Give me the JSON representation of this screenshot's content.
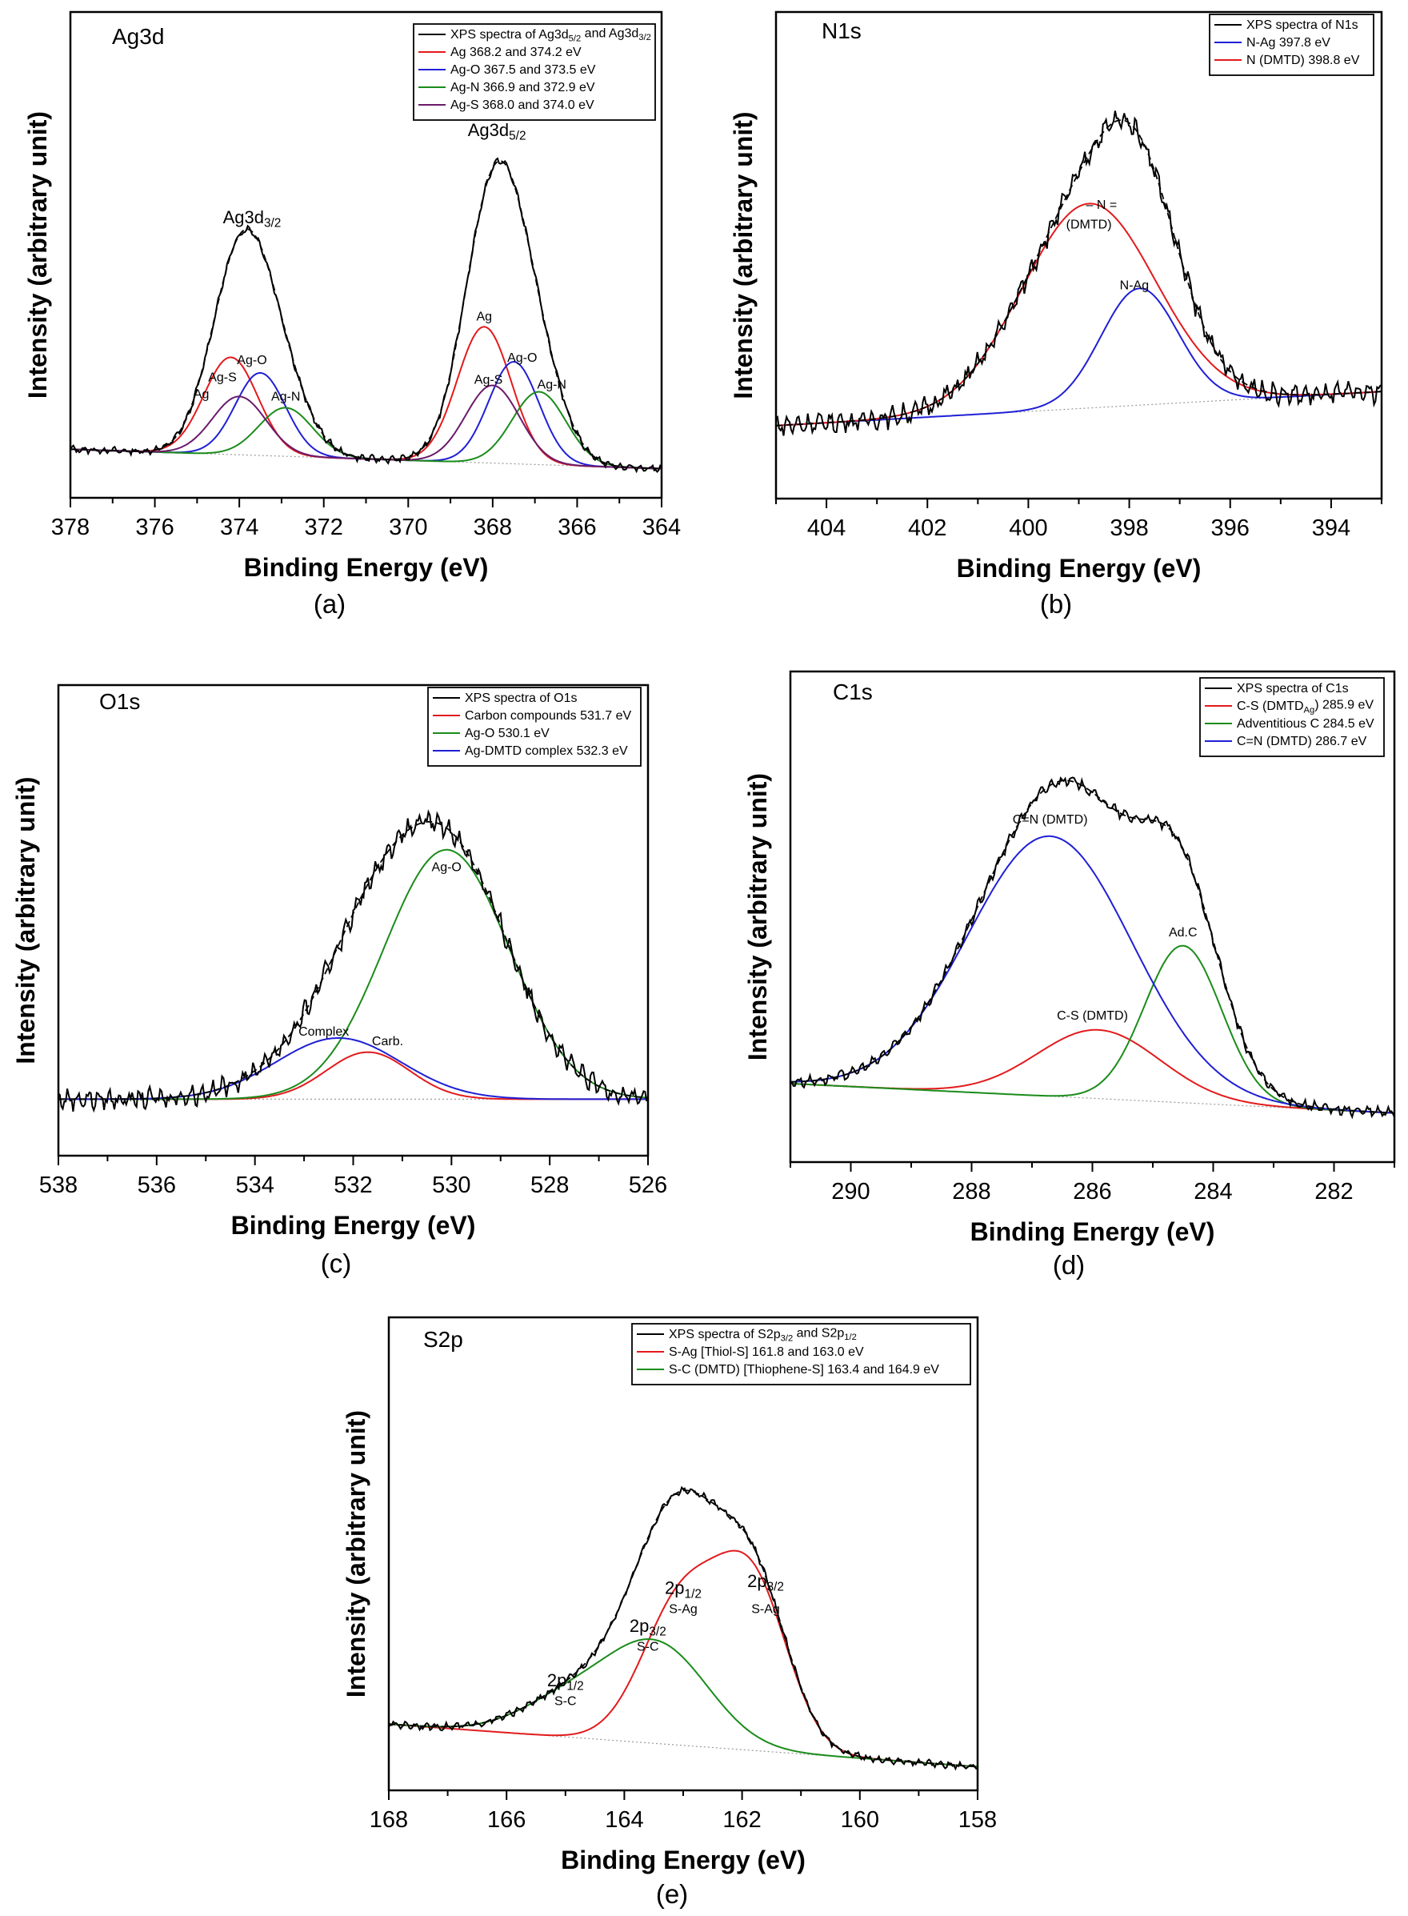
{
  "chart_data": [
    {
      "type": "line",
      "panel_caption": "(a)",
      "title": "Ag3d",
      "xlabel": "Binding Energy (eV)",
      "ylabel": "Intensity (arbitrary unit)",
      "xlim": [
        378,
        364
      ],
      "ylim": [
        0,
        1
      ],
      "xticks": [
        378,
        376,
        374,
        372,
        370,
        368,
        366,
        364
      ],
      "minor_step": 1,
      "grid": false,
      "legend_placement": "top-right",
      "baseline": [
        0.1,
        0.06
      ],
      "noise": 0.004,
      "legend": [
        {
          "text": "XPS spectra of Ag3d_{5/2} and Ag3d_{3/2}",
          "color": "#000000"
        },
        {
          "text": "Ag     368.2 and 374.2 eV",
          "color": "#e31a1c"
        },
        {
          "text": "Ag-O  367.5 and 373.5 eV",
          "color": "#1f1fd6"
        },
        {
          "text": "Ag-N  366.9 and 372.9 eV",
          "color": "#1a8c1a"
        },
        {
          "text": "Ag-S  368.0 and 374.0 eV",
          "color": "#6b1a6b"
        }
      ],
      "components": [
        {
          "name": "Ag",
          "color": "#e31a1c",
          "peaks": [
            {
              "center": 368.2,
              "height": 0.28,
              "fwhm": 1.5
            },
            {
              "center": 374.2,
              "height": 0.2,
              "fwhm": 1.5
            }
          ]
        },
        {
          "name": "Ag-O",
          "color": "#1f1fd6",
          "peaks": [
            {
              "center": 367.5,
              "height": 0.21,
              "fwhm": 1.4
            },
            {
              "center": 373.5,
              "height": 0.17,
              "fwhm": 1.4
            }
          ]
        },
        {
          "name": "Ag-N",
          "color": "#1a8c1a",
          "peaks": [
            {
              "center": 366.9,
              "height": 0.15,
              "fwhm": 1.5
            },
            {
              "center": 372.9,
              "height": 0.1,
              "fwhm": 1.5
            }
          ]
        },
        {
          "name": "Ag-S",
          "color": "#6b1a6b",
          "peaks": [
            {
              "center": 368.0,
              "height": 0.16,
              "fwhm": 1.5
            },
            {
              "center": 374.0,
              "height": 0.12,
              "fwhm": 1.5
            }
          ]
        }
      ],
      "annotations": [
        {
          "text": "Ag3d_{3/2}",
          "x": 373.7,
          "y": 0.565,
          "size": "large"
        },
        {
          "text": "Ag3d_{5/2}",
          "x": 367.9,
          "y": 0.745,
          "size": "large"
        },
        {
          "text": "Ag",
          "x": 374.9,
          "y": 0.205
        },
        {
          "text": "Ag-S",
          "x": 374.4,
          "y": 0.24
        },
        {
          "text": "Ag-O",
          "x": 373.7,
          "y": 0.275
        },
        {
          "text": "Ag-N",
          "x": 372.9,
          "y": 0.2
        },
        {
          "text": "Ag",
          "x": 368.2,
          "y": 0.365
        },
        {
          "text": "Ag-O",
          "x": 367.3,
          "y": 0.28
        },
        {
          "text": "Ag-S",
          "x": 368.1,
          "y": 0.235
        },
        {
          "text": "Ag-N",
          "x": 366.6,
          "y": 0.225
        }
      ]
    },
    {
      "type": "line",
      "panel_caption": "(b)",
      "title": "N1s",
      "xlabel": "Binding Energy (eV)",
      "ylabel": "Intensity (arbitrary unit)",
      "xlim": [
        405,
        393
      ],
      "ylim": [
        0,
        1
      ],
      "xticks": [
        404,
        402,
        400,
        398,
        396,
        394
      ],
      "minor_step": 1,
      "grid": false,
      "legend_placement": "top-right",
      "baseline": [
        0.15,
        0.22
      ],
      "noise": 0.012,
      "legend": [
        {
          "text": "XPS spectra of N1s",
          "color": "#000000"
        },
        {
          "text": "N-Ag  397.8 eV",
          "color": "#1f1fd6"
        },
        {
          "text": "N (DMTD)  398.8 eV",
          "color": "#e31a1c"
        }
      ],
      "components": [
        {
          "name": "N-Ag",
          "color": "#1f1fd6",
          "peaks": [
            {
              "center": 397.8,
              "height": 0.24,
              "fwhm": 1.8
            }
          ]
        },
        {
          "name": "N (DMTD)",
          "color": "#e31a1c",
          "peaks": [
            {
              "center": 398.8,
              "height": 0.42,
              "fwhm": 3.1
            }
          ]
        }
      ],
      "annotations": [
        {
          "text": "– N =",
          "x": 398.55,
          "y": 0.595
        },
        {
          "text": "(DMTD)",
          "x": 398.8,
          "y": 0.555
        },
        {
          "text": "N-Ag",
          "x": 397.9,
          "y": 0.43
        }
      ]
    },
    {
      "type": "line",
      "panel_caption": "(c)",
      "title": "O1s",
      "xlabel": "Binding Energy (eV)",
      "ylabel": "Intensity (arbitrary unit)",
      "xlim": [
        538,
        526
      ],
      "ylim": [
        0,
        1
      ],
      "xticks": [
        538,
        536,
        534,
        532,
        530,
        528,
        526
      ],
      "minor_step": 1,
      "grid": false,
      "legend_placement": "top-right",
      "baseline": [
        0.12,
        0.12
      ],
      "noise": 0.012,
      "legend": [
        {
          "text": "XPS spectra of O1s",
          "color": "#000000"
        },
        {
          "text": "Carbon compounds 531.7 eV",
          "color": "#e31a1c"
        },
        {
          "text": "Ag-O 530.1 eV",
          "color": "#1a8c1a"
        },
        {
          "text": "Ag-DMTD complex 532.3 eV",
          "color": "#1f1fd6"
        }
      ],
      "components": [
        {
          "name": "Carbon compounds",
          "color": "#e31a1c",
          "peaks": [
            {
              "center": 531.7,
              "height": 0.1,
              "fwhm": 2.0
            }
          ]
        },
        {
          "name": "Ag-O",
          "color": "#1a8c1a",
          "peaks": [
            {
              "center": 530.1,
              "height": 0.53,
              "fwhm": 3.0
            }
          ]
        },
        {
          "name": "Ag-DMTD complex",
          "color": "#1f1fd6",
          "peaks": [
            {
              "center": 532.3,
              "height": 0.13,
              "fwhm": 3.0
            }
          ]
        }
      ],
      "annotations": [
        {
          "text": "Ag-O",
          "x": 530.1,
          "y": 0.605
        },
        {
          "text": "Complex",
          "x": 532.6,
          "y": 0.255
        },
        {
          "text": "Carb.",
          "x": 531.3,
          "y": 0.235
        }
      ]
    },
    {
      "type": "line",
      "panel_caption": "(d)",
      "title": "C1s",
      "xlabel": "Binding Energy (eV)",
      "ylabel": "Intensity (arbitrary unit)",
      "xlim": [
        291,
        281
      ],
      "ylim": [
        0,
        1
      ],
      "xticks": [
        290,
        288,
        286,
        284,
        282
      ],
      "minor_step": 1,
      "grid": false,
      "legend_placement": "top-right",
      "baseline": [
        0.16,
        0.1
      ],
      "noise": 0.006,
      "legend": [
        {
          "text": "XPS spectra of C1s",
          "color": "#000000"
        },
        {
          "text": "C-S (DMTD_{Ag}) 285.9 eV",
          "color": "#e31a1c"
        },
        {
          "text": "Adventitious C 284.5 eV",
          "color": "#1a8c1a"
        },
        {
          "text": "C=N (DMTD) 286.7 eV",
          "color": "#1f1fd6"
        }
      ],
      "components": [
        {
          "name": "C-S (DMTD)",
          "color": "#e31a1c",
          "peaks": [
            {
              "center": 285.9,
              "height": 0.14,
              "fwhm": 2.4
            }
          ]
        },
        {
          "name": "Adventitious C",
          "color": "#1a8c1a",
          "peaks": [
            {
              "center": 284.5,
              "height": 0.32,
              "fwhm": 1.5
            }
          ]
        },
        {
          "name": "C=N (DMTD)",
          "color": "#1f1fd6",
          "peaks": [
            {
              "center": 286.7,
              "height": 0.53,
              "fwhm": 3.2
            }
          ]
        }
      ],
      "annotations": [
        {
          "text": "C=N (DMTD)",
          "x": 286.7,
          "y": 0.69
        },
        {
          "text": "Ad.C",
          "x": 284.5,
          "y": 0.46
        },
        {
          "text": "C-S (DMTD)",
          "x": 286.0,
          "y": 0.29
        }
      ]
    },
    {
      "type": "line",
      "panel_caption": "(e)",
      "title": "S2p",
      "xlabel": "Binding Energy (eV)",
      "ylabel": "Intensity (arbitrary unit)",
      "xlim": [
        168,
        158
      ],
      "ylim": [
        0,
        1
      ],
      "xticks": [
        168,
        166,
        164,
        162,
        160,
        158
      ],
      "minor_step": 1,
      "grid": false,
      "legend_placement": "top-right",
      "baseline": [
        0.14,
        0.05
      ],
      "noise": 0.004,
      "legend": [
        {
          "text": "XPS spectra of S2p_{3/2} and S2p_{1/2}",
          "color": "#000000"
        },
        {
          "text": "S-Ag [Thiol-S] 161.8 and 163.0 eV",
          "color": "#e31a1c"
        },
        {
          "text": "S-C (DMTD) [Thiophene-S] 163.4 and 164.9 eV",
          "color": "#1a8c1a"
        }
      ],
      "components": [
        {
          "name": "S-Ag [Thiol-S]",
          "color": "#e31a1c",
          "peaks": [
            {
              "center": 161.8,
              "height": 0.33,
              "fwhm": 1.4
            },
            {
              "center": 163.0,
              "height": 0.31,
              "fwhm": 1.6
            }
          ]
        },
        {
          "name": "S-C (DMTD) [Thiophene-S]",
          "color": "#1a8c1a",
          "peaks": [
            {
              "center": 163.4,
              "height": 0.2,
              "fwhm": 2.0
            },
            {
              "center": 164.9,
              "height": 0.08,
              "fwhm": 2.0
            }
          ]
        }
      ],
      "annotations": [
        {
          "text": "2p_{3/2}",
          "x": 161.6,
          "y": 0.43,
          "size": "large"
        },
        {
          "text": "S-Ag",
          "x": 161.6,
          "y": 0.375
        },
        {
          "text": "2p_{1/2}",
          "x": 163.0,
          "y": 0.415,
          "size": "large"
        },
        {
          "text": "S-Ag",
          "x": 163.0,
          "y": 0.375
        },
        {
          "text": "2p_{3/2}",
          "x": 163.6,
          "y": 0.335,
          "size": "large"
        },
        {
          "text": "S-C",
          "x": 163.6,
          "y": 0.295
        },
        {
          "text": "2p_{1/2}",
          "x": 165.0,
          "y": 0.22,
          "size": "large"
        },
        {
          "text": "S-C",
          "x": 165.0,
          "y": 0.18
        }
      ]
    }
  ]
}
